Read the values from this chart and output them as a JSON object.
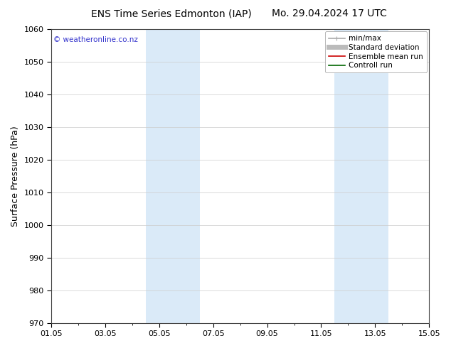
{
  "title_left": "ENS Time Series Edmonton (IAP)",
  "title_right": "Mo. 29.04.2024 17 UTC",
  "ylabel": "Surface Pressure (hPa)",
  "ylim": [
    970,
    1060
  ],
  "yticks": [
    970,
    980,
    990,
    1000,
    1010,
    1020,
    1030,
    1040,
    1050,
    1060
  ],
  "xlim": [
    0,
    14
  ],
  "xtick_labels": [
    "01.05",
    "03.05",
    "05.05",
    "07.05",
    "09.05",
    "11.05",
    "13.05",
    "15.05"
  ],
  "xtick_positions": [
    0,
    2,
    4,
    6,
    8,
    10,
    12,
    14
  ],
  "shaded_regions": [
    {
      "xmin": 3.5,
      "xmax": 5.5,
      "color": "#daeaf8"
    },
    {
      "xmin": 10.5,
      "xmax": 12.5,
      "color": "#daeaf8"
    }
  ],
  "legend_entries": [
    {
      "label": "min/max",
      "color": "#aaaaaa",
      "lw": 1.2
    },
    {
      "label": "Standard deviation",
      "color": "#bbbbbb",
      "lw": 5
    },
    {
      "label": "Ensemble mean run",
      "color": "#cc0000",
      "lw": 1.2
    },
    {
      "label": "Controll run",
      "color": "#006600",
      "lw": 1.2
    }
  ],
  "watermark": "© weatheronline.co.nz",
  "watermark_color": "#3333cc",
  "background_color": "#ffffff",
  "title_fontsize": 10,
  "axis_label_fontsize": 9,
  "tick_fontsize": 8,
  "legend_fontsize": 7.5
}
